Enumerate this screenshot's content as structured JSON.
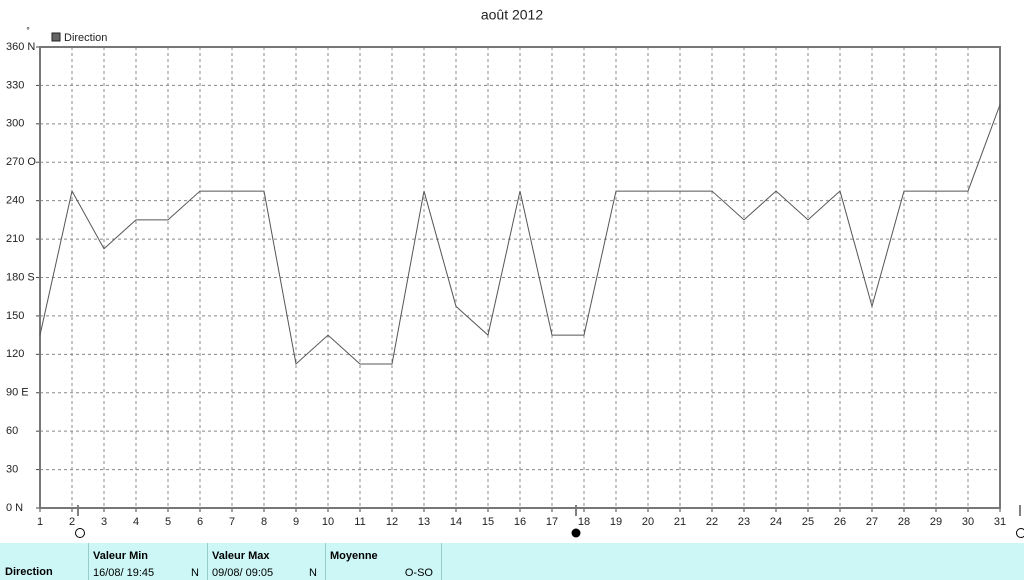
{
  "chart_data": {
    "type": "line",
    "title": "août 2012",
    "y_label": "°",
    "x": [
      1,
      2,
      3,
      4,
      5,
      6,
      7,
      8,
      9,
      10,
      11,
      12,
      13,
      14,
      15,
      16,
      17,
      18,
      19,
      20,
      21,
      22,
      23,
      24,
      25,
      26,
      27,
      28,
      29,
      30,
      31
    ],
    "xlim": [
      1,
      31
    ],
    "series": [
      {
        "name": "Direction",
        "color": "#555555",
        "values": [
          135,
          247.5,
          202.5,
          225,
          225,
          247.5,
          247.5,
          247.5,
          112.5,
          135,
          112.5,
          112.5,
          247.5,
          157.5,
          135,
          247.5,
          135,
          135,
          247.5,
          247.5,
          247.5,
          247.5,
          225,
          247.5,
          225,
          247.5,
          157.5,
          247.5,
          247.5,
          247.5,
          315
        ]
      }
    ],
    "ylim": [
      0,
      360
    ],
    "yticks": [
      {
        "value": 0,
        "label": "0 N"
      },
      30,
      60,
      {
        "value": 90,
        "label": "90 E"
      },
      120,
      150,
      {
        "value": 180,
        "label": "180 S"
      },
      210,
      240,
      {
        "value": 270,
        "label": "270 O"
      },
      300,
      330,
      {
        "value": 360,
        "label": "360 N"
      }
    ],
    "grid": true,
    "legend": "top-left"
  },
  "summary": {
    "name": "Direction",
    "min": {
      "label": "Valeur Min",
      "date": "16/08/ 19:45",
      "value": "N"
    },
    "max": {
      "label": "Valeur Max",
      "date": "09/08/ 09:05",
      "value": "N"
    },
    "mean": {
      "label": "Moyenne",
      "value": "O-SO"
    }
  }
}
